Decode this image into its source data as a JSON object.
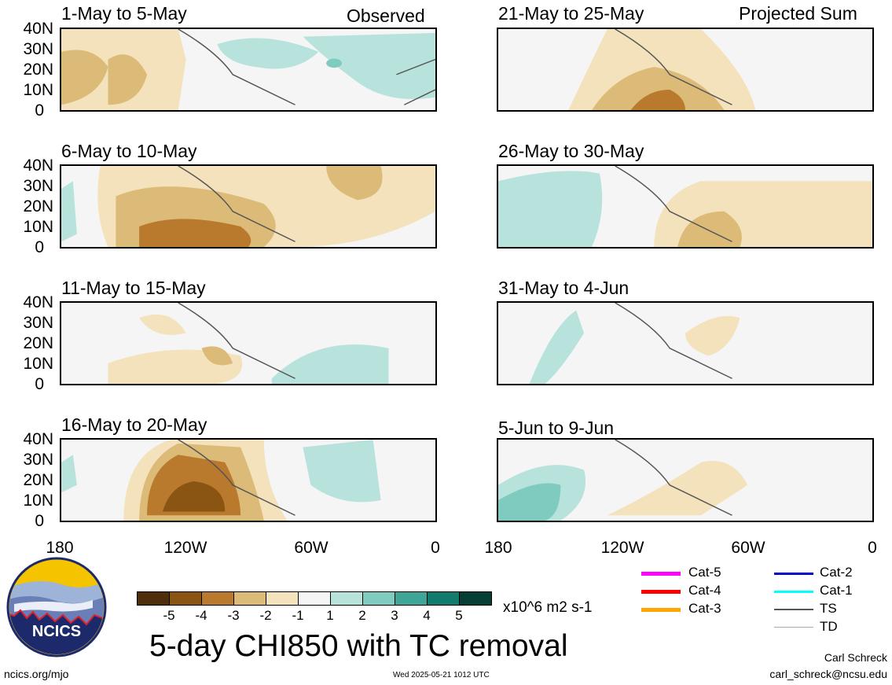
{
  "header": {
    "observed_label": "Observed",
    "projected_label": "Projected Sum"
  },
  "panels": [
    {
      "title": "1-May to 5-May"
    },
    {
      "title": "6-May to 10-May"
    },
    {
      "title": "11-May to 15-May"
    },
    {
      "title": "16-May to 20-May"
    },
    {
      "title": "21-May to 25-May"
    },
    {
      "title": "26-May to 30-May"
    },
    {
      "title": "31-May to 4-Jun"
    },
    {
      "title": "5-Jun to 9-Jun"
    }
  ],
  "axes": {
    "lat_labels": [
      "40N",
      "30N",
      "20N",
      "10N",
      "0"
    ],
    "lon_labels": [
      "180",
      "120W",
      "60W",
      "0"
    ]
  },
  "colorbar": {
    "labels": [
      "-5",
      "-4",
      "-3",
      "-2",
      "-1",
      "1",
      "2",
      "3",
      "4",
      "5"
    ],
    "colors": [
      "#4e2e0b",
      "#8a5412",
      "#b97a2e",
      "#dcbb78",
      "#f3e2bb",
      "#f5f5f5",
      "#b8e3dc",
      "#7fcbbf",
      "#3ea597",
      "#137b6e",
      "#063f36"
    ],
    "units": "x10^6 m2 s-1"
  },
  "title": "5-day CHI850 with TC removal",
  "legend": [
    {
      "label": "Cat-5",
      "color": "#ff00ff"
    },
    {
      "label": "Cat-4",
      "color": "#ff0000"
    },
    {
      "label": "Cat-3",
      "color": "#ffa500"
    },
    {
      "label": "Cat-2",
      "color": "#0000cc"
    },
    {
      "label": "Cat-1",
      "color": "#00ffff"
    },
    {
      "label": "TS",
      "color": "#555555"
    },
    {
      "label": "TD",
      "color": "#aaaaaa"
    }
  ],
  "footer": {
    "website": "ncics.org/mjo",
    "timestamp": "Wed 2025-05-21 1012 UTC",
    "author": "Carl Schreck",
    "email": "carl_schreck@ncsu.edu"
  },
  "logo": {
    "text": "NCICS"
  }
}
